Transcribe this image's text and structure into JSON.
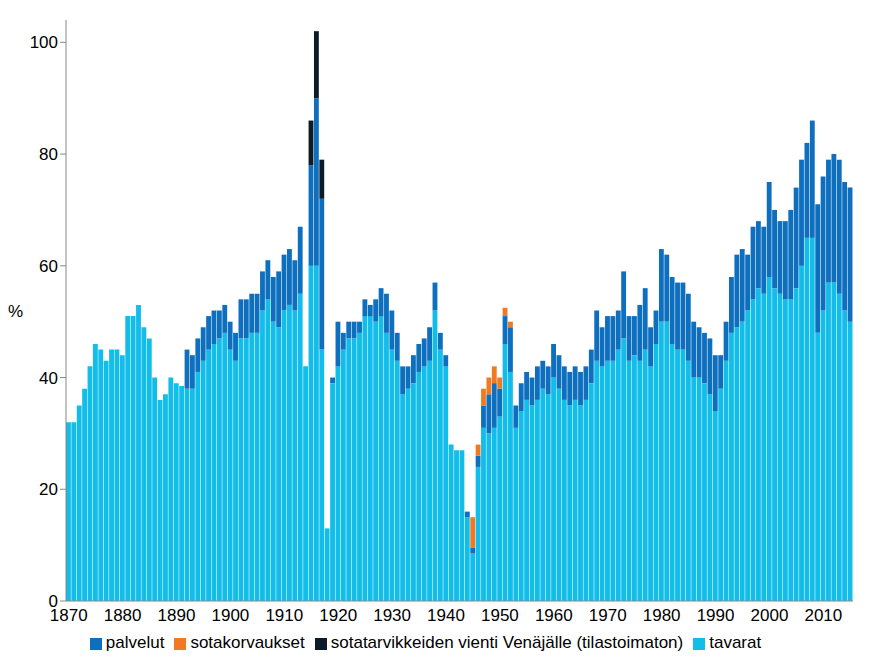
{
  "chart_data": {
    "type": "bar",
    "stacked": true,
    "grid": false,
    "legend": "bottom",
    "y_label": "%",
    "x": [
      1870,
      1871,
      1872,
      1873,
      1874,
      1875,
      1876,
      1877,
      1878,
      1879,
      1880,
      1881,
      1882,
      1883,
      1884,
      1885,
      1886,
      1887,
      1888,
      1889,
      1890,
      1891,
      1892,
      1893,
      1894,
      1895,
      1896,
      1897,
      1898,
      1899,
      1900,
      1901,
      1902,
      1903,
      1904,
      1905,
      1906,
      1907,
      1908,
      1909,
      1910,
      1911,
      1912,
      1913,
      1914,
      1915,
      1916,
      1917,
      1918,
      1919,
      1920,
      1921,
      1922,
      1923,
      1924,
      1925,
      1926,
      1927,
      1928,
      1929,
      1930,
      1931,
      1932,
      1933,
      1934,
      1935,
      1936,
      1937,
      1938,
      1939,
      1940,
      1941,
      1942,
      1943,
      1944,
      1945,
      1946,
      1947,
      1948,
      1949,
      1950,
      1951,
      1952,
      1953,
      1954,
      1955,
      1956,
      1957,
      1958,
      1959,
      1960,
      1961,
      1962,
      1963,
      1964,
      1965,
      1966,
      1967,
      1968,
      1969,
      1970,
      1971,
      1972,
      1973,
      1974,
      1975,
      1976,
      1977,
      1978,
      1979,
      1980,
      1981,
      1982,
      1983,
      1984,
      1985,
      1986,
      1987,
      1988,
      1989,
      1990,
      1991,
      1992,
      1993,
      1994,
      1995,
      1996,
      1997,
      1998,
      1999,
      2000,
      2001,
      2002,
      2003,
      2004,
      2005,
      2006,
      2007,
      2008,
      2009,
      2010,
      2011,
      2012,
      2013,
      2014,
      2015
    ],
    "xlim": [
      1869.5,
      2015.5
    ],
    "xticks": [
      1870,
      1880,
      1890,
      1900,
      1910,
      1920,
      1930,
      1940,
      1950,
      1960,
      1970,
      1980,
      1990,
      2000,
      2010
    ],
    "ylim": [
      0,
      104
    ],
    "yticks": [
      0,
      20,
      40,
      60,
      80,
      100
    ],
    "series": [
      {
        "name": "tavarat",
        "color": "#12bdea",
        "values": [
          32,
          32,
          35,
          38,
          42,
          46,
          45,
          43,
          45,
          45,
          44,
          51,
          51,
          53,
          49,
          47,
          40,
          36,
          37,
          40,
          39,
          38.5,
          38,
          38,
          41,
          43,
          45,
          46,
          47,
          48,
          45,
          43,
          47,
          47,
          48,
          48,
          52,
          54,
          50,
          49,
          52,
          53,
          52,
          55,
          42,
          60,
          60,
          45,
          13,
          39,
          42,
          45,
          47,
          47,
          48,
          51,
          51,
          50,
          51,
          48,
          45,
          43,
          37,
          38,
          39,
          41,
          42,
          43,
          52,
          45,
          42,
          28,
          27,
          27,
          15,
          8.5,
          24,
          31,
          30,
          31,
          33,
          46,
          41,
          31,
          34,
          36,
          35,
          36,
          38,
          37,
          40,
          38,
          36,
          35,
          36,
          35,
          36,
          39,
          43,
          42,
          43,
          43,
          45,
          47,
          43,
          44,
          43,
          45,
          42,
          46,
          50,
          50,
          46,
          45,
          45,
          43,
          40,
          40,
          39,
          37,
          34,
          38,
          43,
          48,
          49,
          50,
          52,
          54,
          56,
          55,
          58,
          56,
          55,
          54,
          54,
          56,
          60,
          65,
          65,
          48,
          52,
          57,
          57,
          55,
          52,
          50
        ]
      },
      {
        "name": "palvelut",
        "color": "#0f6fbf",
        "values": [
          null,
          null,
          null,
          null,
          null,
          null,
          null,
          null,
          null,
          null,
          null,
          null,
          null,
          null,
          null,
          null,
          null,
          null,
          null,
          null,
          null,
          null,
          7,
          6,
          6,
          6,
          6,
          6,
          5,
          5,
          5,
          5,
          7,
          7,
          7,
          7,
          7,
          7,
          8,
          10,
          10,
          10,
          9,
          12,
          null,
          18,
          30,
          27,
          null,
          1,
          8,
          3,
          3,
          3,
          2,
          3,
          2,
          4,
          5,
          7,
          7,
          5,
          5,
          4,
          5,
          5,
          5,
          6,
          5,
          3,
          2,
          null,
          null,
          null,
          1,
          1,
          2,
          4,
          7,
          8,
          5,
          5,
          8,
          4,
          5,
          5,
          5,
          6,
          5,
          5,
          6,
          6,
          6,
          6,
          6,
          6,
          6,
          6,
          9,
          7,
          8,
          8,
          7,
          12,
          8,
          7,
          10,
          11,
          7,
          6,
          13,
          12,
          12,
          12,
          12,
          12,
          10,
          9,
          9,
          10,
          10,
          6,
          7,
          10,
          13,
          13,
          10,
          13,
          12,
          12,
          17,
          14,
          13,
          14,
          16,
          18,
          19,
          17,
          21,
          23,
          24,
          22,
          23,
          24,
          23,
          24
        ]
      },
      {
        "name": "sotatarvikkeiden vienti Venäjälle (tilastoimaton)",
        "color": "#0b1b27",
        "values": [
          null,
          null,
          null,
          null,
          null,
          null,
          null,
          null,
          null,
          null,
          null,
          null,
          null,
          null,
          null,
          null,
          null,
          null,
          null,
          null,
          null,
          null,
          null,
          null,
          null,
          null,
          null,
          null,
          null,
          null,
          null,
          null,
          null,
          null,
          null,
          null,
          null,
          null,
          null,
          null,
          null,
          null,
          null,
          null,
          null,
          8,
          12,
          7,
          null,
          null,
          null,
          null,
          null,
          null,
          null,
          null,
          null,
          null,
          null,
          null,
          null,
          null,
          null,
          null,
          null,
          null,
          null,
          null,
          null,
          null,
          null,
          null,
          null,
          null,
          null,
          null,
          null,
          null,
          null,
          null,
          null,
          null,
          null,
          null,
          null,
          null,
          null,
          null,
          null,
          null,
          null,
          null,
          null,
          null,
          null,
          null,
          null,
          null,
          null,
          null,
          null,
          null,
          null,
          null,
          null,
          null,
          null,
          null,
          null,
          null,
          null,
          null,
          null,
          null,
          null,
          null,
          null,
          null,
          null,
          null,
          null,
          null,
          null,
          null,
          null,
          null,
          null,
          null,
          null,
          null,
          null,
          null,
          null,
          null,
          null,
          null,
          null,
          null,
          null,
          null,
          null,
          null,
          null,
          null,
          null,
          null
        ]
      },
      {
        "name": "sotakorvaukset",
        "color": "#f07a22",
        "values": [
          null,
          null,
          null,
          null,
          null,
          null,
          null,
          null,
          null,
          null,
          null,
          null,
          null,
          null,
          null,
          null,
          null,
          null,
          null,
          null,
          null,
          null,
          null,
          null,
          null,
          null,
          null,
          null,
          null,
          null,
          null,
          null,
          null,
          null,
          null,
          null,
          null,
          null,
          null,
          null,
          null,
          null,
          null,
          null,
          null,
          null,
          null,
          null,
          null,
          null,
          null,
          null,
          null,
          null,
          null,
          null,
          null,
          null,
          null,
          null,
          null,
          null,
          null,
          null,
          null,
          null,
          null,
          null,
          null,
          null,
          null,
          null,
          null,
          null,
          null,
          5.5,
          2,
          3,
          3,
          3,
          2,
          1.5,
          1,
          null,
          null,
          null,
          null,
          null,
          null,
          null,
          null,
          null,
          null,
          null,
          null,
          null,
          null,
          null,
          null,
          null,
          null,
          null,
          null,
          null,
          null,
          null,
          null,
          null,
          null,
          null,
          null,
          null,
          null,
          null,
          null,
          null,
          null,
          null,
          null,
          null,
          null,
          null,
          null,
          null,
          null,
          null,
          null,
          null,
          null,
          null,
          null,
          null,
          null,
          null,
          null,
          null,
          null,
          null,
          null,
          null,
          null,
          null,
          null,
          null,
          null,
          null
        ]
      }
    ]
  }
}
